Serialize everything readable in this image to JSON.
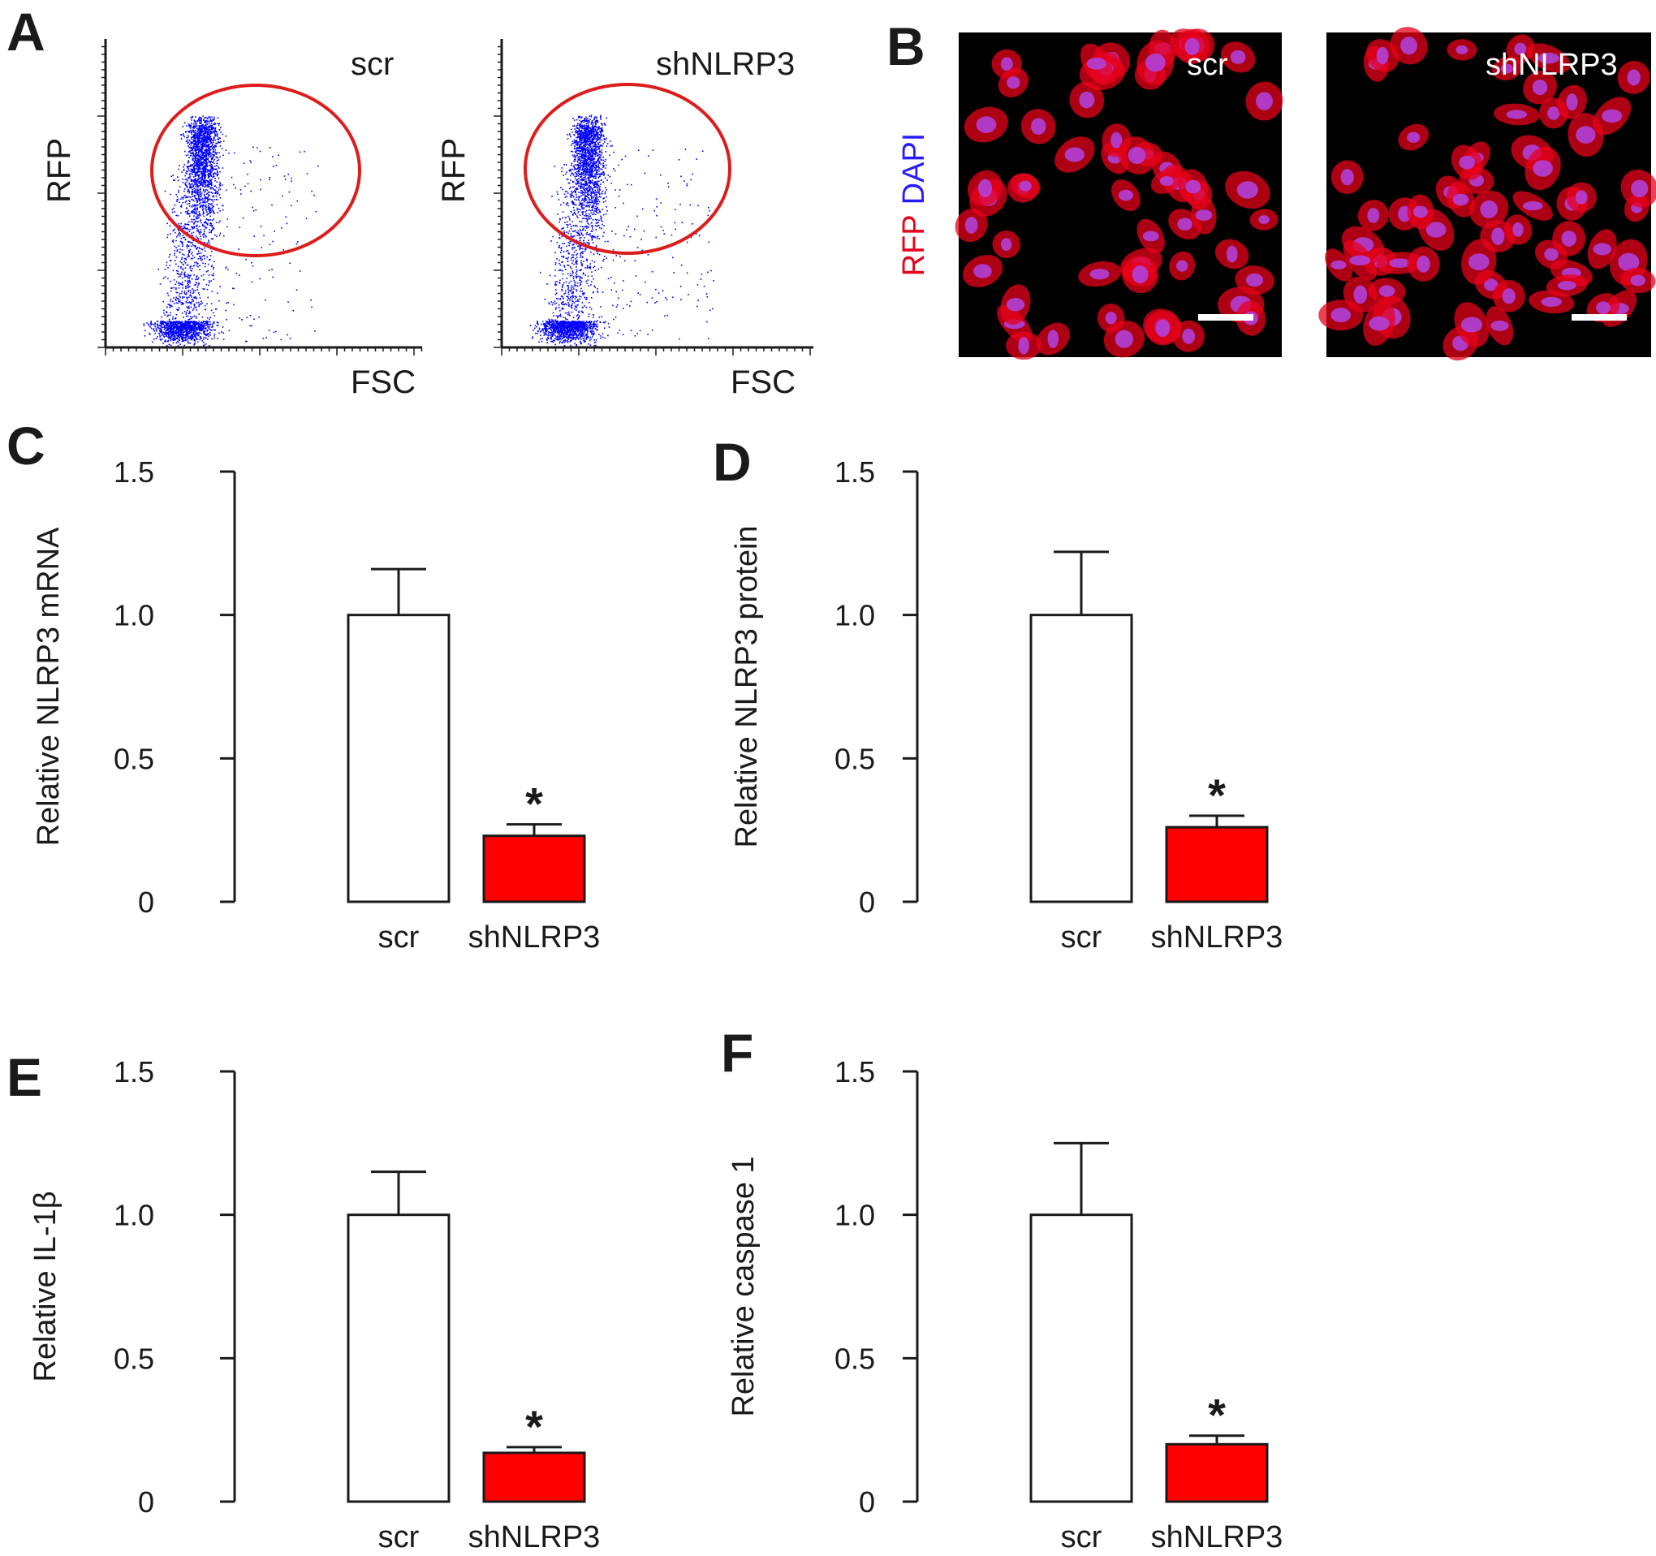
{
  "colors": {
    "scr_bar": "#ffffff",
    "shNLRP3_bar": "#ff0000",
    "bar_edge": "#1a1a1a",
    "flow_dots": "#0000ff",
    "gate": "#dd1c1c",
    "rfp": "#e8001a",
    "dapi": "#2a1bff",
    "image_background": "#000000"
  },
  "panel_a": {
    "letter": "A",
    "plots": [
      {
        "label": "scr",
        "x_axis": "FSC",
        "y_axis": "RFP"
      },
      {
        "label": "shNLRP3",
        "x_axis": "FSC",
        "y_axis": "RFP"
      }
    ]
  },
  "panel_b": {
    "letter": "B",
    "stain_label_rfp": "RFP",
    "stain_label_dapi": "DAPI",
    "images": [
      {
        "label": "scr"
      },
      {
        "label": "shNLRP3"
      }
    ]
  },
  "chart_data": [
    {
      "panel": "C",
      "type": "bar",
      "categories": [
        "scr",
        "shNLRP3"
      ],
      "values": [
        1.0,
        0.23
      ],
      "errors": [
        0.16,
        0.04
      ],
      "significance": [
        "",
        "*"
      ],
      "ylabel": "Relative NLRP3 mRNA",
      "ylim": [
        0,
        1.5
      ],
      "yticks": [
        "0",
        "0.5",
        "1.0",
        "1.5"
      ]
    },
    {
      "panel": "D",
      "type": "bar",
      "categories": [
        "scr",
        "shNLRP3"
      ],
      "values": [
        1.0,
        0.26
      ],
      "errors": [
        0.22,
        0.04
      ],
      "significance": [
        "",
        "*"
      ],
      "ylabel": "Relative NLRP3 protein",
      "ylim": [
        0,
        1.5
      ],
      "yticks": [
        "0",
        "0.5",
        "1.0",
        "1.5"
      ]
    },
    {
      "panel": "E",
      "type": "bar",
      "categories": [
        "scr",
        "shNLRP3"
      ],
      "values": [
        1.0,
        0.17
      ],
      "errors": [
        0.15,
        0.02
      ],
      "significance": [
        "",
        "*"
      ],
      "ylabel": "Relative IL-1β",
      "ylim": [
        0,
        1.5
      ],
      "yticks": [
        "0",
        "0.5",
        "1.0",
        "1.5"
      ]
    },
    {
      "panel": "F",
      "type": "bar",
      "categories": [
        "scr",
        "shNLRP3"
      ],
      "values": [
        1.0,
        0.2
      ],
      "errors": [
        0.25,
        0.03
      ],
      "significance": [
        "",
        "*"
      ],
      "ylabel": "Relative caspase 1",
      "ylim": [
        0,
        1.5
      ],
      "yticks": [
        "0",
        "0.5",
        "1.0",
        "1.5"
      ]
    }
  ]
}
